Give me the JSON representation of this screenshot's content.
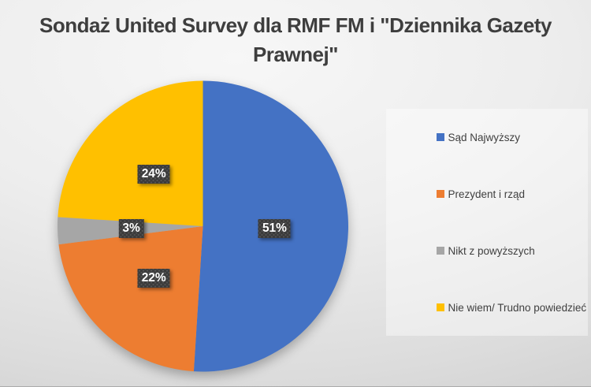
{
  "title": "Sondaż United Survey dla RMF FM i \"Dziennika Gazety Prawnej\"",
  "chart_data": {
    "type": "pie",
    "title": "Sondaż United Survey dla RMF FM i \"Dziennika Gazety Prawnej\"",
    "categories": [
      "Sąd Najwyższy",
      "Prezydent i rząd",
      "Nikt z powyższych",
      "Nie wiem/ Trudno powiedzieć"
    ],
    "values": [
      51,
      22,
      3,
      24
    ],
    "data_labels": [
      "51%",
      "22%",
      "3%",
      "24%"
    ],
    "colors": [
      "#4472C4",
      "#ED7D31",
      "#A6A6A6",
      "#FFC000"
    ],
    "start_angle_deg": 0,
    "direction": "clockwise",
    "legend_position": "right",
    "label_style": {
      "background": "#3B3B3B",
      "text_color": "#FFFFFF"
    },
    "title_color": "#3E3E3E"
  }
}
